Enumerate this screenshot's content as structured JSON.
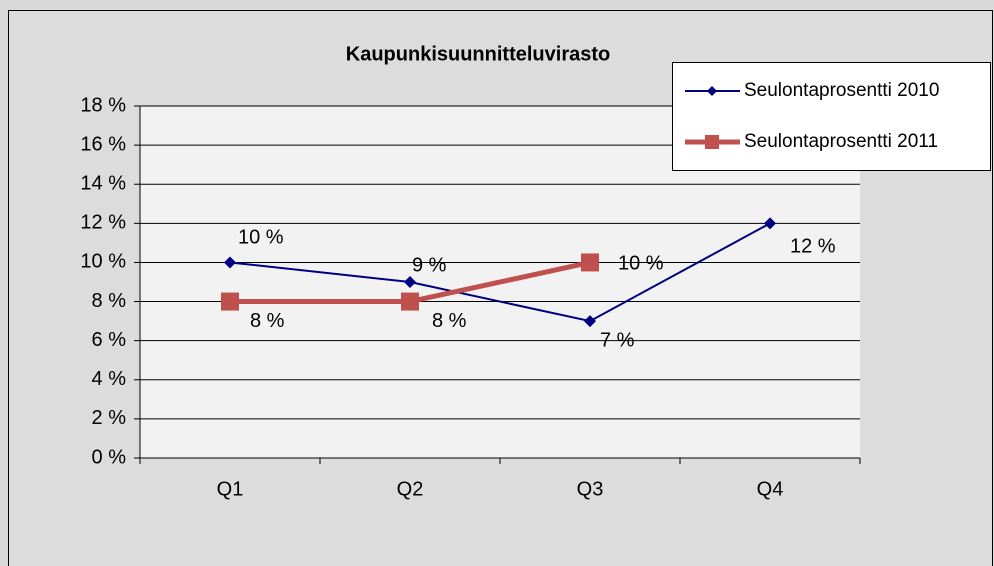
{
  "chart_data": {
    "type": "line",
    "title": "Kaupunkisuunnitteluvirasto",
    "categories": [
      "Q1",
      "Q2",
      "Q3",
      "Q4"
    ],
    "series": [
      {
        "name": "Seulontaprosentti 2010",
        "color": "#000080",
        "values": [
          10,
          9,
          7,
          12
        ],
        "value_labels": [
          "10 %",
          "9 %",
          "7 %",
          "12 %"
        ]
      },
      {
        "name": "Seulontaprosentti 2011",
        "color": "#c0504d",
        "values": [
          8,
          8,
          10,
          null
        ],
        "value_labels": [
          "8 %",
          "8 %",
          "10 %",
          null
        ]
      }
    ],
    "ylim": [
      0,
      18
    ],
    "yticks": [
      {
        "value": 0,
        "label": "0 %"
      },
      {
        "value": 2,
        "label": "2 %"
      },
      {
        "value": 4,
        "label": "4 %"
      },
      {
        "value": 6,
        "label": "6 %"
      },
      {
        "value": 8,
        "label": "8 %"
      },
      {
        "value": 10,
        "label": "10 %"
      },
      {
        "value": 12,
        "label": "12 %"
      },
      {
        "value": 14,
        "label": "14 %"
      },
      {
        "value": 16,
        "label": "16 %"
      },
      {
        "value": 18,
        "label": "18 %"
      }
    ],
    "grid": true,
    "legend": "upper right"
  }
}
